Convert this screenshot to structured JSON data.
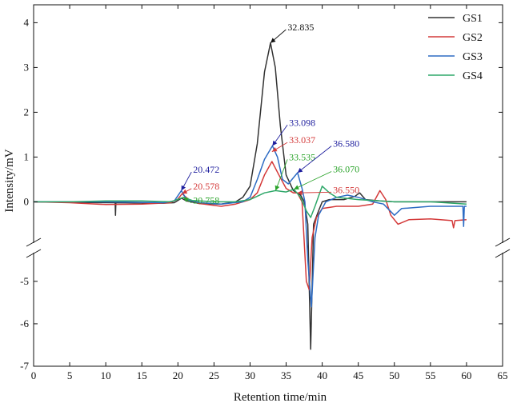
{
  "chart_data": {
    "type": "line",
    "xlabel": "Retention time/min",
    "ylabel": "Intensity/mV",
    "xlim": [
      0,
      65
    ],
    "ylim_upper": [
      -0.85,
      4.4
    ],
    "ylim_lower": [
      -7,
      -4.4
    ],
    "axis_break": "broken y axis between -0.85 and -4.4",
    "grid": false,
    "legend_position": "top-right",
    "x_ticks": [
      "0",
      "5",
      "10",
      "15",
      "20",
      "25",
      "30",
      "35",
      "40",
      "45",
      "50",
      "55",
      "60",
      "65"
    ],
    "y_ticks_upper": [
      "0",
      "1",
      "2",
      "3",
      "4"
    ],
    "y_ticks_lower": [
      "-5",
      "-6",
      "-7"
    ],
    "series": [
      {
        "name": "GS1",
        "color": "#333333",
        "points": [
          [
            0,
            0
          ],
          [
            10,
            -0.02
          ],
          [
            11.3,
            -0.02
          ],
          [
            11.35,
            -0.3
          ],
          [
            11.4,
            -0.02
          ],
          [
            18,
            -0.03
          ],
          [
            19.5,
            -0.02
          ],
          [
            20.5,
            0.08
          ],
          [
            21.2,
            0.02
          ],
          [
            23,
            -0.04
          ],
          [
            26,
            -0.05
          ],
          [
            28,
            0
          ],
          [
            29,
            0.1
          ],
          [
            30,
            0.35
          ],
          [
            31,
            1.3
          ],
          [
            32,
            2.9
          ],
          [
            32.835,
            3.55
          ],
          [
            33.5,
            3.0
          ],
          [
            34.2,
            1.7
          ],
          [
            35,
            0.6
          ],
          [
            36,
            0.25
          ],
          [
            37,
            0.15
          ],
          [
            37.5,
            0
          ],
          [
            38,
            -0.5
          ],
          [
            38.4,
            -6.6
          ],
          [
            38.8,
            -0.5
          ],
          [
            39.5,
            -0.2
          ],
          [
            40,
            0
          ],
          [
            41,
            0.05
          ],
          [
            43,
            0.05
          ],
          [
            44.5,
            0.12
          ],
          [
            45.2,
            0.2
          ],
          [
            46,
            0.05
          ],
          [
            48,
            0.02
          ],
          [
            50,
            0
          ],
          [
            55,
            0
          ],
          [
            60,
            0
          ]
        ]
      },
      {
        "name": "GS2",
        "color": "#d43a3a",
        "points": [
          [
            0,
            0
          ],
          [
            5,
            -0.02
          ],
          [
            10,
            -0.06
          ],
          [
            15,
            -0.05
          ],
          [
            19,
            -0.02
          ],
          [
            20,
            0.06
          ],
          [
            20.578,
            0.18
          ],
          [
            21.5,
            0.05
          ],
          [
            23,
            -0.04
          ],
          [
            26,
            -0.1
          ],
          [
            28,
            -0.05
          ],
          [
            30,
            0.05
          ],
          [
            31,
            0.2
          ],
          [
            32,
            0.6
          ],
          [
            33.037,
            0.9
          ],
          [
            34,
            0.6
          ],
          [
            35,
            0.3
          ],
          [
            36,
            0.2
          ],
          [
            36.55,
            0.2
          ],
          [
            37.2,
            0
          ],
          [
            37.8,
            -5
          ],
          [
            38.2,
            -5.2
          ],
          [
            38.6,
            -0.8
          ],
          [
            39.2,
            -0.35
          ],
          [
            40,
            -0.15
          ],
          [
            42,
            -0.1
          ],
          [
            45,
            -0.1
          ],
          [
            47,
            -0.05
          ],
          [
            48,
            0.25
          ],
          [
            48.8,
            0.05
          ],
          [
            49.5,
            -0.3
          ],
          [
            50.5,
            -0.5
          ],
          [
            52,
            -0.4
          ],
          [
            55,
            -0.38
          ],
          [
            58,
            -0.42
          ],
          [
            58.2,
            -0.58
          ],
          [
            58.4,
            -0.42
          ],
          [
            60,
            -0.4
          ]
        ]
      },
      {
        "name": "GS3",
        "color": "#2e6cc4",
        "points": [
          [
            0,
            0
          ],
          [
            10,
            0
          ],
          [
            18,
            -0.02
          ],
          [
            19.5,
            0.02
          ],
          [
            20.472,
            0.25
          ],
          [
            21.2,
            0.05
          ],
          [
            23,
            -0.02
          ],
          [
            26,
            -0.05
          ],
          [
            29,
            0
          ],
          [
            30,
            0.1
          ],
          [
            31,
            0.5
          ],
          [
            32,
            0.95
          ],
          [
            33.098,
            1.25
          ],
          [
            33.8,
            1.0
          ],
          [
            34.5,
            0.5
          ],
          [
            35.3,
            0.4
          ],
          [
            36.58,
            0.65
          ],
          [
            37.2,
            0.3
          ],
          [
            37.6,
            0
          ],
          [
            38.0,
            -4.5
          ],
          [
            38.5,
            -5.6
          ],
          [
            39,
            -0.8
          ],
          [
            39.5,
            -0.3
          ],
          [
            40.5,
            0
          ],
          [
            42,
            0.1
          ],
          [
            43.5,
            0.15
          ],
          [
            45,
            0.1
          ],
          [
            47,
            0
          ],
          [
            48.5,
            -0.05
          ],
          [
            50,
            -0.3
          ],
          [
            51,
            -0.15
          ],
          [
            55,
            -0.1
          ],
          [
            59.5,
            -0.1
          ],
          [
            59.6,
            -0.55
          ],
          [
            59.7,
            -0.1
          ],
          [
            60,
            -0.1
          ]
        ]
      },
      {
        "name": "GS4",
        "color": "#2fa86a",
        "points": [
          [
            0,
            0
          ],
          [
            5,
            0
          ],
          [
            10,
            0.02
          ],
          [
            15,
            0.02
          ],
          [
            19,
            0
          ],
          [
            20.758,
            0.1
          ],
          [
            22,
            0.03
          ],
          [
            25,
            0
          ],
          [
            28,
            0
          ],
          [
            30,
            0.05
          ],
          [
            32,
            0.2
          ],
          [
            33.535,
            0.25
          ],
          [
            35,
            0.22
          ],
          [
            36.07,
            0.28
          ],
          [
            37,
            0.1
          ],
          [
            37.8,
            -0.2
          ],
          [
            38.4,
            -0.35
          ],
          [
            39,
            -0.1
          ],
          [
            40,
            0.35
          ],
          [
            41,
            0.2
          ],
          [
            42,
            0.1
          ],
          [
            45,
            0.05
          ],
          [
            50,
            0
          ],
          [
            55,
            0
          ],
          [
            60,
            -0.05
          ]
        ]
      }
    ],
    "annotations": [
      {
        "text": "32.835",
        "color": "#111111",
        "x": 32.835,
        "y": 3.55,
        "lx": 35.2,
        "ly": 3.9
      },
      {
        "text": "33.098",
        "color": "#1f1f9e",
        "x": 33.098,
        "y": 1.25,
        "lx": 35.4,
        "ly": 1.77
      },
      {
        "text": "33.037",
        "color": "#d43a3a",
        "x": 33.037,
        "y": 1.12,
        "lx": 35.4,
        "ly": 1.38
      },
      {
        "text": "33.535",
        "color": "#2aa32a",
        "x": 33.535,
        "y": 0.25,
        "lx": 35.4,
        "ly": 1.0
      },
      {
        "text": "36.580",
        "color": "#1f1f9e",
        "x": 36.58,
        "y": 0.65,
        "lx": 41.5,
        "ly": 1.3
      },
      {
        "text": "36.070",
        "color": "#2aa32a",
        "x": 36.07,
        "y": 0.28,
        "lx": 41.5,
        "ly": 0.73
      },
      {
        "text": "36.550",
        "color": "#d43a3a",
        "x": 36.55,
        "y": 0.2,
        "lx": 41.5,
        "ly": 0.27
      },
      {
        "text": "20.472",
        "color": "#1f1f9e",
        "x": 20.472,
        "y": 0.25,
        "lx": 22.1,
        "ly": 0.72
      },
      {
        "text": "20.578",
        "color": "#d43a3a",
        "x": 20.578,
        "y": 0.18,
        "lx": 22.1,
        "ly": 0.35
      },
      {
        "text": "20.758",
        "color": "#2aa32a",
        "x": 20.758,
        "y": 0.1,
        "lx": 22.1,
        "ly": 0.03
      }
    ]
  }
}
